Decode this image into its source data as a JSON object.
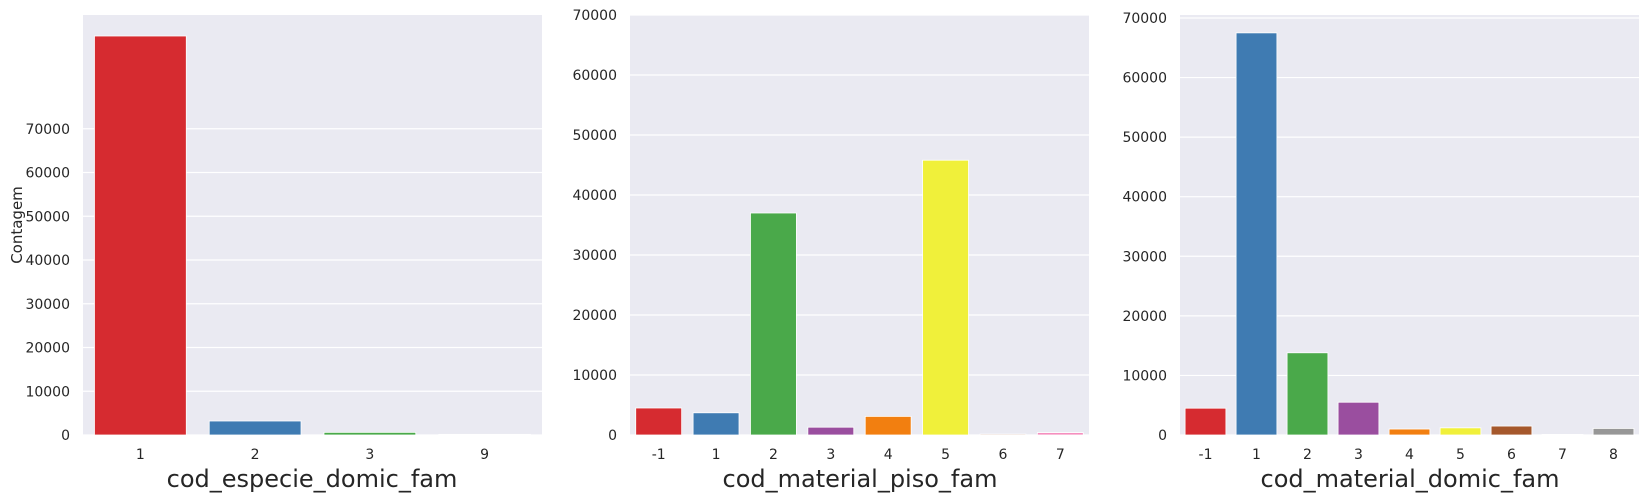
{
  "colors": {
    "plot_background": "#eaeaf2",
    "grid": "#ffffff",
    "text": "#262626"
  },
  "chart_data": [
    {
      "type": "bar",
      "xlabel": "cod_especie_domic_fam",
      "ylabel": "Contagem",
      "categories": [
        "1",
        "2",
        "3",
        "9"
      ],
      "values": [
        91200,
        3200,
        600,
        150
      ],
      "colors": [
        "#d62b30",
        "#3f7bb2",
        "#4aa94a",
        "#9a4e9f"
      ],
      "ylim": [
        0,
        96000
      ],
      "yticks": [
        0,
        10000,
        20000,
        30000,
        40000,
        50000,
        60000,
        70000
      ],
      "grid": true,
      "legend": "none"
    },
    {
      "type": "bar",
      "xlabel": "cod_material_piso_fam",
      "ylabel": "",
      "categories": [
        "-1",
        "1",
        "2",
        "3",
        "4",
        "5",
        "6",
        "7"
      ],
      "values": [
        4500,
        3700,
        37000,
        1300,
        3100,
        45800,
        150,
        400
      ],
      "colors": [
        "#d62b30",
        "#3f7bb2",
        "#4aa94a",
        "#9a4e9f",
        "#f27f10",
        "#f0f03a",
        "#a5582c",
        "#f58fbf"
      ],
      "ylim": [
        0,
        70000
      ],
      "yticks": [
        0,
        10000,
        20000,
        30000,
        40000,
        50000,
        60000,
        70000
      ],
      "grid": true,
      "legend": "none"
    },
    {
      "type": "bar",
      "xlabel": "cod_material_domic_fam",
      "ylabel": "",
      "categories": [
        "-1",
        "1",
        "2",
        "3",
        "4",
        "5",
        "6",
        "7",
        "8"
      ],
      "values": [
        4500,
        67500,
        13800,
        5500,
        1000,
        1200,
        1500,
        100,
        1100
      ],
      "colors": [
        "#d62b30",
        "#3f7bb2",
        "#4aa94a",
        "#9a4e9f",
        "#f27f10",
        "#f0f03a",
        "#a5582c",
        "#f58fbf",
        "#979797"
      ],
      "ylim": [
        0,
        70500
      ],
      "yticks": [
        0,
        10000,
        20000,
        30000,
        40000,
        50000,
        60000,
        70000
      ],
      "grid": true,
      "legend": "none"
    }
  ]
}
